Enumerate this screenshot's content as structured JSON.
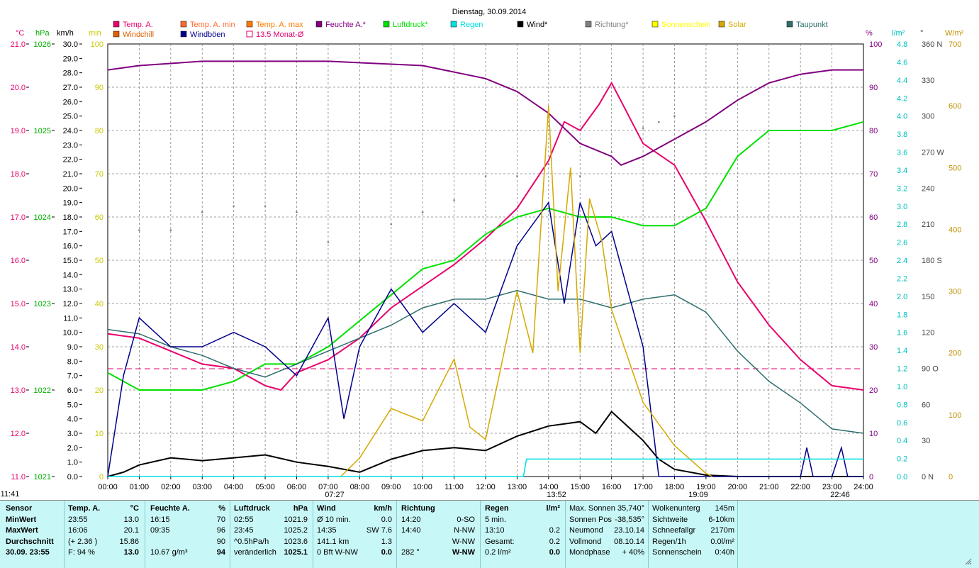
{
  "chart_data": {
    "type": "line",
    "title": "Dienstag, 30.09.2014",
    "legend": [
      {
        "name": "Temp. A.",
        "color": "#e8006c"
      },
      {
        "name": "Temp. A. min",
        "color": "#ff6a30"
      },
      {
        "name": "Temp. A. max",
        "color": "#ff7a00"
      },
      {
        "name": "Feuchte A.*",
        "color": "#800080"
      },
      {
        "name": "Luftdruck*",
        "color": "#00e000"
      },
      {
        "name": "Regen",
        "color": "#00e0e0"
      },
      {
        "name": "Wind*",
        "color": "#000000"
      },
      {
        "name": "Richtung*",
        "color": "#808080"
      },
      {
        "name": "Sonnenschein",
        "color": "#ffff00"
      },
      {
        "name": "Solar",
        "color": "#d4a800"
      },
      {
        "name": "Taupunkt",
        "color": "#2f6e6e"
      },
      {
        "name": "Windchill",
        "color": "#e06000"
      },
      {
        "name": "Windböen",
        "color": "#00008b"
      },
      {
        "name": "13.5 Monat-Ø",
        "color": "#e0006c"
      }
    ],
    "x_ticks": [
      "00:00",
      "01:00",
      "02:00",
      "03:00",
      "04:00",
      "05:00",
      "06:00",
      "07:00",
      "08:00",
      "09:00",
      "10:00",
      "11:00",
      "12:00",
      "13:00",
      "14:00",
      "15:00",
      "16:00",
      "17:00",
      "18:00",
      "19:00",
      "20:00",
      "21:00",
      "22:00",
      "23:00",
      "24:00"
    ],
    "sun_marks": [
      "11:41",
      "07:27",
      "13:52",
      "19:09",
      "22:46"
    ],
    "axes": {
      "temp": {
        "unit": "°C",
        "min": 11.0,
        "max": 21.0,
        "ticks": [
          "21.0",
          "20.0",
          "19.0",
          "18.0",
          "17.0",
          "16.0",
          "15.0",
          "14.0",
          "13.0",
          "12.0",
          "11.0"
        ]
      },
      "pressure": {
        "unit": "hPa",
        "ticks": [
          "1026",
          "1025",
          "1024",
          "1023",
          "1022",
          "1021"
        ]
      },
      "wind": {
        "unit": "km/h",
        "min": 0,
        "max": 30,
        "ticks": [
          "30.0",
          "29.0",
          "28.0",
          "27.0",
          "26.0",
          "25.0",
          "24.0",
          "23.0",
          "22.0",
          "21.0",
          "20.0",
          "19.0",
          "18.0",
          "17.0",
          "16.0",
          "15.0",
          "14.0",
          "13.0",
          "12.0",
          "11.0",
          "10.0",
          "9.0",
          "8.0",
          "7.0",
          "6.0",
          "5.0",
          "4.0",
          "3.0",
          "2.0",
          "1.0",
          "0.0"
        ]
      },
      "minutes": {
        "unit": "min",
        "ticks": [
          "100",
          "90",
          "80",
          "70",
          "60",
          "50",
          "40",
          "30",
          "20",
          "10",
          "0"
        ]
      },
      "humidity": {
        "unit": "%",
        "ticks": [
          "100",
          "90",
          "80",
          "70",
          "60",
          "50",
          "40",
          "30",
          "20",
          "10",
          "0"
        ]
      },
      "rain": {
        "unit": "l/m²",
        "ticks": [
          "4.8",
          "4.6",
          "4.4",
          "4.2",
          "4.0",
          "3.8",
          "3.6",
          "3.4",
          "3.2",
          "3.0",
          "2.8",
          "2.6",
          "2.4",
          "2.2",
          "2.0",
          "1.8",
          "1.6",
          "1.4",
          "1.2",
          "1.0",
          "0.8",
          "0.6",
          "0.4",
          "0.2",
          "0.0"
        ]
      },
      "direction": {
        "unit": "°",
        "ticks": [
          "360 N",
          "330",
          "300",
          "270 W",
          "240",
          "210",
          "180 S",
          "150",
          "120",
          "90 O",
          "60",
          "30",
          "0 N"
        ]
      },
      "solar": {
        "unit": "W/m²",
        "ticks": [
          "700",
          "600",
          "500",
          "400",
          "300",
          "200",
          "100",
          "0"
        ]
      }
    },
    "series": [
      {
        "name": "Temp. A.",
        "points": [
          [
            0,
            14.3
          ],
          [
            1,
            14.2
          ],
          [
            2,
            13.9
          ],
          [
            3,
            13.6
          ],
          [
            4,
            13.5
          ],
          [
            5,
            13.1
          ],
          [
            5.5,
            13.0
          ],
          [
            6,
            13.4
          ],
          [
            7,
            13.7
          ],
          [
            8,
            14.2
          ],
          [
            9,
            14.9
          ],
          [
            10,
            15.4
          ],
          [
            11,
            15.9
          ],
          [
            12,
            16.5
          ],
          [
            13,
            17.2
          ],
          [
            14,
            18.3
          ],
          [
            14.5,
            19.2
          ],
          [
            15,
            19.0
          ],
          [
            15.6,
            19.6
          ],
          [
            16,
            20.1
          ],
          [
            16.5,
            19.4
          ],
          [
            17,
            18.7
          ],
          [
            18,
            18.2
          ],
          [
            19,
            16.9
          ],
          [
            20,
            15.5
          ],
          [
            21,
            14.5
          ],
          [
            22,
            13.7
          ],
          [
            23,
            13.1
          ],
          [
            24,
            13.0
          ]
        ]
      },
      {
        "name": "Feuchte A.*",
        "points": [
          [
            0,
            94
          ],
          [
            1,
            95
          ],
          [
            3,
            96
          ],
          [
            5,
            96
          ],
          [
            7,
            96
          ],
          [
            10,
            95
          ],
          [
            12,
            92
          ],
          [
            13,
            89
          ],
          [
            14,
            84
          ],
          [
            15,
            77
          ],
          [
            16,
            74
          ],
          [
            16.3,
            72
          ],
          [
            17,
            74
          ],
          [
            18,
            78
          ],
          [
            19,
            82
          ],
          [
            20,
            87
          ],
          [
            21,
            91
          ],
          [
            22,
            93
          ],
          [
            23,
            94
          ],
          [
            24,
            94
          ]
        ]
      },
      {
        "name": "Luftdruck*",
        "points": [
          [
            0,
            1022.2
          ],
          [
            1,
            1022.0
          ],
          [
            2,
            1022.0
          ],
          [
            3,
            1022.0
          ],
          [
            4,
            1022.1
          ],
          [
            5,
            1022.3
          ],
          [
            6,
            1022.3
          ],
          [
            7,
            1022.5
          ],
          [
            8,
            1022.8
          ],
          [
            9,
            1023.1
          ],
          [
            10,
            1023.4
          ],
          [
            11,
            1023.5
          ],
          [
            12,
            1023.8
          ],
          [
            13,
            1024.0
          ],
          [
            14,
            1024.1
          ],
          [
            15,
            1024.0
          ],
          [
            16,
            1024.0
          ],
          [
            17,
            1023.9
          ],
          [
            18,
            1023.9
          ],
          [
            19,
            1024.1
          ],
          [
            20,
            1024.7
          ],
          [
            21,
            1025.0
          ],
          [
            22,
            1025.0
          ],
          [
            23,
            1025.0
          ],
          [
            24,
            1025.1
          ]
        ]
      },
      {
        "name": "Taupunkt",
        "points": [
          [
            0,
            14.4
          ],
          [
            1,
            14.3
          ],
          [
            2,
            14.0
          ],
          [
            3,
            13.8
          ],
          [
            4,
            13.5
          ],
          [
            5,
            13.3
          ],
          [
            6,
            13.6
          ],
          [
            7,
            13.9
          ],
          [
            8,
            14.2
          ],
          [
            9,
            14.5
          ],
          [
            10,
            14.9
          ],
          [
            11,
            15.1
          ],
          [
            12,
            15.1
          ],
          [
            13,
            15.3
          ],
          [
            14,
            15.1
          ],
          [
            15,
            15.1
          ],
          [
            16,
            14.9
          ],
          [
            17,
            15.1
          ],
          [
            18,
            15.2
          ],
          [
            19,
            14.8
          ],
          [
            20,
            13.9
          ],
          [
            21,
            13.2
          ],
          [
            22,
            12.7
          ],
          [
            23,
            12.1
          ],
          [
            24,
            12.0
          ]
        ]
      },
      {
        "name": "Wind*",
        "points": [
          [
            0,
            0
          ],
          [
            0.5,
            0.3
          ],
          [
            1,
            0.8
          ],
          [
            2,
            1.3
          ],
          [
            3,
            1.1
          ],
          [
            4,
            1.3
          ],
          [
            5,
            1.5
          ],
          [
            6,
            1.0
          ],
          [
            7,
            0.7
          ],
          [
            8,
            0.3
          ],
          [
            9,
            1.2
          ],
          [
            10,
            1.8
          ],
          [
            11,
            2.0
          ],
          [
            12,
            1.8
          ],
          [
            13,
            2.8
          ],
          [
            14,
            3.5
          ],
          [
            15,
            3.8
          ],
          [
            15.5,
            3.0
          ],
          [
            16,
            4.5
          ],
          [
            17,
            2.5
          ],
          [
            17.5,
            1.2
          ],
          [
            18,
            0.5
          ],
          [
            19,
            0.1
          ],
          [
            20,
            0
          ],
          [
            24,
            0
          ]
        ]
      },
      {
        "name": "Windböen",
        "points": [
          [
            0,
            0
          ],
          [
            0.5,
            7
          ],
          [
            1,
            11
          ],
          [
            2,
            9
          ],
          [
            3,
            9
          ],
          [
            4,
            10
          ],
          [
            5,
            9
          ],
          [
            6,
            7
          ],
          [
            7,
            11
          ],
          [
            7.5,
            4
          ],
          [
            8,
            9
          ],
          [
            9,
            13
          ],
          [
            10,
            10
          ],
          [
            11,
            12
          ],
          [
            12,
            10
          ],
          [
            13,
            16
          ],
          [
            14,
            19
          ],
          [
            14.5,
            12
          ],
          [
            15,
            19
          ],
          [
            15.5,
            16
          ],
          [
            16,
            17
          ],
          [
            17,
            9
          ],
          [
            17.5,
            0
          ],
          [
            18,
            0
          ],
          [
            22,
            0
          ],
          [
            22.2,
            2
          ],
          [
            22.4,
            0
          ],
          [
            23,
            0
          ],
          [
            23.3,
            2
          ],
          [
            23.5,
            0
          ],
          [
            24,
            0
          ]
        ]
      },
      {
        "name": "Solar",
        "points": [
          [
            7.4,
            0
          ],
          [
            8,
            30
          ],
          [
            9,
            110
          ],
          [
            10,
            90
          ],
          [
            11,
            190
          ],
          [
            11.5,
            80
          ],
          [
            12,
            60
          ],
          [
            13,
            300
          ],
          [
            13.5,
            200
          ],
          [
            14,
            600
          ],
          [
            14.3,
            300
          ],
          [
            14.7,
            500
          ],
          [
            15,
            200
          ],
          [
            15.3,
            450
          ],
          [
            15.7,
            380
          ],
          [
            16,
            270
          ],
          [
            17,
            120
          ],
          [
            18,
            50
          ],
          [
            19,
            5
          ],
          [
            19.2,
            0
          ]
        ]
      },
      {
        "name": "Regen",
        "points": [
          [
            0,
            0
          ],
          [
            13.2,
            0
          ],
          [
            13.3,
            0.2
          ],
          [
            24,
            0.2
          ]
        ]
      },
      {
        "name": "Richtung*",
        "points": [
          [
            0,
            245
          ],
          [
            1,
            205
          ],
          [
            2,
            205
          ],
          [
            3,
            220
          ],
          [
            4,
            225
          ],
          [
            5,
            225
          ],
          [
            6,
            220
          ],
          [
            7,
            195
          ],
          [
            8,
            180
          ],
          [
            9,
            210
          ],
          [
            10,
            220
          ],
          [
            11,
            230
          ],
          [
            12,
            250
          ],
          [
            13,
            250
          ],
          [
            14,
            260
          ],
          [
            15,
            250
          ],
          [
            16,
            270
          ],
          [
            17,
            290
          ],
          [
            17.5,
            295
          ],
          [
            18,
            300
          ]
        ]
      }
    ],
    "month_avg_temp": 13.5
  },
  "stats": {
    "row_labels": [
      "Sensor",
      "MinWert",
      "MaxWert",
      "Durchschnitt",
      "30.09. 23:55"
    ],
    "temp": {
      "header": "Temp. A.",
      "unit": "°C",
      "rows": [
        [
          "23:55",
          "13.0"
        ],
        [
          "16:06",
          "20.1"
        ],
        [
          "(+ 2.36 )",
          "15.86"
        ],
        [
          "F: 94 %",
          "13.0"
        ]
      ]
    },
    "humidity": {
      "header": "Feuchte A.",
      "unit": "%",
      "rows": [
        [
          "16:15",
          "70"
        ],
        [
          "09:35",
          "96"
        ],
        [
          "",
          "90"
        ],
        [
          "10.67 g/m³",
          "94"
        ]
      ]
    },
    "pressure": {
      "header": "Luftdruck",
      "unit": "hPa",
      "rows": [
        [
          "02:55",
          "1021.9"
        ],
        [
          "23:45",
          "1025.2"
        ],
        [
          "^0.5hPa/h",
          "1023.6"
        ],
        [
          "veränderlich",
          "1025.1"
        ]
      ]
    },
    "wind": {
      "header": "Wind",
      "unit": "km/h",
      "rows": [
        [
          "Ø 10 min.",
          "0.0"
        ],
        [
          "14:35",
          "SW 7.6"
        ],
        [
          "141.1 km",
          "1.3"
        ],
        [
          "0 Bft W-NW",
          "0.0"
        ]
      ]
    },
    "direction": {
      "header": "Richtung",
      "rows": [
        [
          "14:20",
          "0-SO"
        ],
        [
          "14:40",
          "N-NW"
        ],
        [
          "",
          "W-NW"
        ],
        [
          "282 °",
          "W-NW"
        ]
      ]
    },
    "rain": {
      "header": "Regen",
      "unit": "l/m²",
      "rows": [
        [
          "5 min.",
          ""
        ],
        [
          "13:10",
          "0.2"
        ],
        [
          "Gesamt:",
          "0.2"
        ],
        [
          "0.2 l/m²",
          "0.0"
        ]
      ]
    },
    "sun": [
      [
        "Max. Sonnen",
        "35,740°"
      ],
      [
        "Sonnen Pos",
        "-38,535°"
      ],
      [
        "Neumond",
        "23.10.14"
      ],
      [
        "Vollmond",
        "08.10.14"
      ],
      [
        "Mondphase",
        "+ 40%"
      ]
    ],
    "cloud": [
      [
        "Wolkenunterg",
        "145m"
      ],
      [
        "Sichtweite",
        "6-10km"
      ],
      [
        "Schneefallgr",
        "2170m"
      ],
      [
        "Regen/1h",
        "0.0l/m²"
      ],
      [
        "Sonnenschein",
        "0:40h"
      ]
    ]
  }
}
